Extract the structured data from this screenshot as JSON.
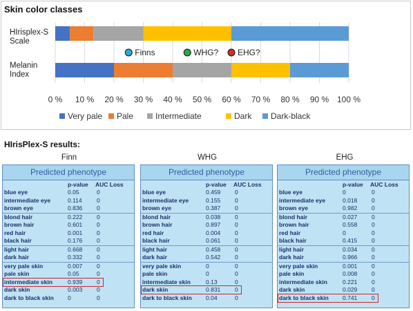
{
  "chart": {
    "title": "Skin color classes",
    "row_labels": [
      "HIrisplex-S Scale",
      "Melanin Index"
    ],
    "legend_labels": [
      "Very pale",
      "Pale",
      "Intermediate",
      "Dark",
      "Dark-black"
    ],
    "markers": [
      {
        "label": "Finns",
        "color": "#29a9e0"
      },
      {
        "label": "WHG?",
        "color": "#2aa84a"
      },
      {
        "label": "EHG?",
        "color": "#d62a2a"
      }
    ]
  },
  "chart_data": {
    "type": "bar",
    "orientation": "horizontal",
    "stacked": true,
    "categories": [
      "HIrisplex-S Scale",
      "Melanin Index"
    ],
    "series": [
      {
        "name": "Very pale",
        "color": "#4472c4",
        "values": [
          5,
          20
        ]
      },
      {
        "name": "Pale",
        "color": "#ed7d31",
        "values": [
          8,
          20
        ]
      },
      {
        "name": "Intermediate",
        "color": "#a5a5a5",
        "values": [
          17,
          20
        ]
      },
      {
        "name": "Dark",
        "color": "#ffc000",
        "values": [
          30,
          20
        ]
      },
      {
        "name": "Dark-black",
        "color": "#5b9bd5",
        "values": [
          40,
          20
        ]
      }
    ],
    "xlim": [
      0,
      100
    ],
    "xticks": [
      "0 %",
      "10 %",
      "20 %",
      "30 %",
      "40 %",
      "50 %",
      "60 %",
      "70 %",
      "80 %",
      "90 %",
      "100 %"
    ],
    "legend_position": "bottom",
    "markers": [
      {
        "label": "Finns",
        "x": 25
      },
      {
        "label": "WHG?",
        "x": 45
      },
      {
        "label": "EHG?",
        "x": 60
      }
    ]
  },
  "results": {
    "title": "HIrisPlex-S results:",
    "header": "Predicted phenotype",
    "col_p": "p-value",
    "col_auc": "AUC Loss",
    "tables": [
      {
        "population": "Finn",
        "rows": [
          [
            "blue eye",
            "0.05",
            "0"
          ],
          [
            "intermediate eye",
            "0.114",
            "0"
          ],
          [
            "brown eye",
            "0.836",
            "0"
          ],
          [
            "blond hair",
            "0.222",
            "0"
          ],
          [
            "brown hair",
            "0.601",
            "0"
          ],
          [
            "red hair",
            "0.001",
            "0"
          ],
          [
            "black hair",
            "0.176",
            "0"
          ],
          [
            "light hair",
            "0.668",
            "0"
          ],
          [
            "dark hair",
            "0.332",
            "0"
          ],
          [
            "very pale skin",
            "0.007",
            "0"
          ],
          [
            "pale skin",
            "0.05",
            "0"
          ],
          [
            "intermediate skin",
            "0.939",
            "0"
          ],
          [
            "dark skin",
            "0.003",
            "0"
          ],
          [
            "dark to black skin",
            "0",
            "0"
          ]
        ],
        "highlight": 11
      },
      {
        "population": "WHG",
        "rows": [
          [
            "blue eye",
            "0.459",
            "0"
          ],
          [
            "intermediate eye",
            "0.155",
            "0"
          ],
          [
            "brown eye",
            "0.387",
            "0"
          ],
          [
            "blond hair",
            "0.038",
            "0"
          ],
          [
            "brown hair",
            "0.897",
            "0"
          ],
          [
            "red hair",
            "0.004",
            "0"
          ],
          [
            "black hair",
            "0.061",
            "0"
          ],
          [
            "light hair",
            "0.458",
            "0"
          ],
          [
            "dark hair",
            "0.542",
            "0"
          ],
          [
            "very pale skin",
            "0",
            "0"
          ],
          [
            "pale skin",
            "0",
            "0"
          ],
          [
            "intermediate skin",
            "0.13",
            "0"
          ],
          [
            "dark skin",
            "0.831",
            "0"
          ],
          [
            "dark to black skin",
            "0.04",
            "0"
          ]
        ],
        "highlight": 12
      },
      {
        "population": "EHG",
        "rows": [
          [
            "blue eye",
            "0",
            "0"
          ],
          [
            "intermediate eye",
            "0.018",
            "0"
          ],
          [
            "brown eye",
            "0.982",
            "0"
          ],
          [
            "blond hair",
            "0.027",
            "0"
          ],
          [
            "brown hair",
            "0.558",
            "0"
          ],
          [
            "red hair",
            "0",
            "0"
          ],
          [
            "black hair",
            "0.415",
            "0"
          ],
          [
            "light hair",
            "0.034",
            "0"
          ],
          [
            "dark hair",
            "0.966",
            "0"
          ],
          [
            "very pale skin",
            "0.001",
            "0"
          ],
          [
            "pale skin",
            "0.008",
            "0"
          ],
          [
            "intermediate skin",
            "0.221",
            "0"
          ],
          [
            "dark skin",
            "0.029",
            "0"
          ],
          [
            "dark to black skin",
            "0.741",
            "0"
          ]
        ],
        "highlight": 13
      }
    ]
  }
}
